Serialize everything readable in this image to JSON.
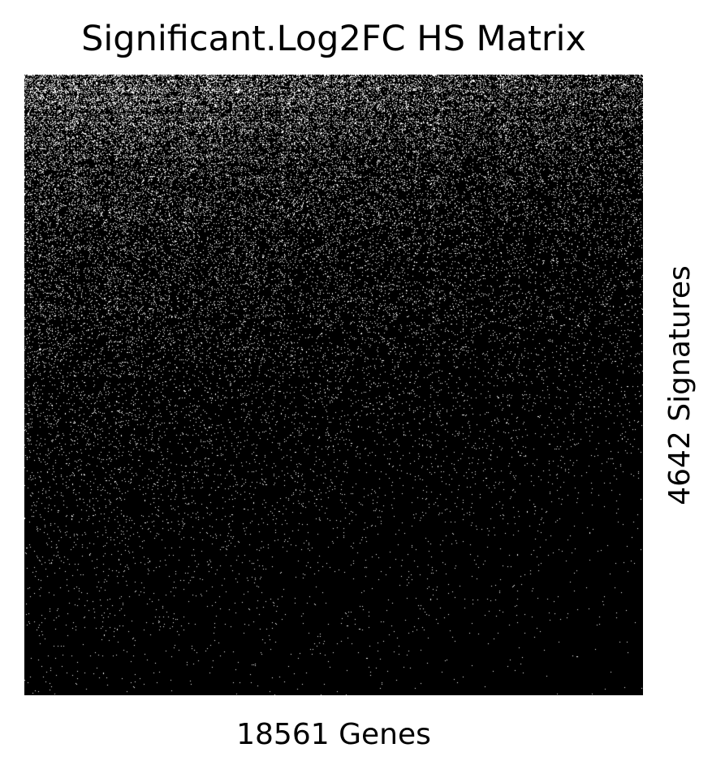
{
  "chart_data": {
    "type": "heatmap",
    "title": "Significant.Log2FC HS Matrix",
    "xlabel": "18561 Genes",
    "ylabel": "4642 Signatures",
    "n_columns": 18561,
    "n_rows": 4642,
    "colors": {
      "background": "#000000",
      "significant": "#ffffff"
    },
    "density_profile": {
      "rows_fraction": [
        0.0,
        0.05,
        0.15,
        0.3,
        0.5,
        0.7,
        0.85,
        1.0
      ],
      "significant_density": [
        0.3,
        0.22,
        0.14,
        0.08,
        0.04,
        0.02,
        0.01,
        0.005
      ]
    },
    "grid": false,
    "axis_ticks": false
  }
}
